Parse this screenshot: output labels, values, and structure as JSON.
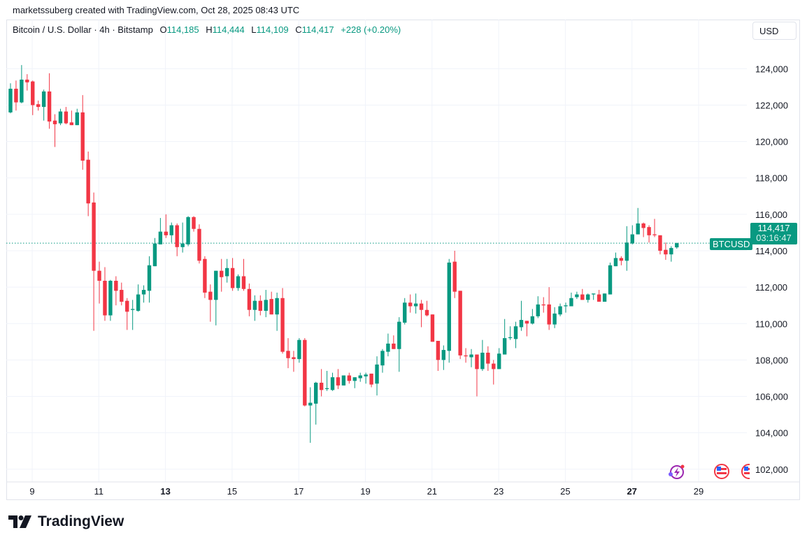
{
  "credit": "marketssuberg created with TradingView.com, Oct 28, 2025 08:43 UTC",
  "legend": {
    "symbol": "Bitcoin / U.S. Dollar · 4h · Bitstamp",
    "o_label": "O",
    "o": "114,185",
    "h_label": "H",
    "h": "114,444",
    "l_label": "L",
    "l": "114,109",
    "c_label": "C",
    "c": "114,417",
    "change": "+228 (+0.20%)"
  },
  "currency_button": "USD",
  "price_tag": {
    "symbol": "BTCUSD",
    "price": "114,417",
    "countdown": "03:16:47"
  },
  "logo_text": "TradingView",
  "colors": {
    "up": "#089981",
    "down": "#f23645",
    "grid": "#f0f3fa",
    "text": "#131722"
  },
  "icons": [
    "lightning-event-icon",
    "us-flag-event-icon",
    "us-flag-event-icon"
  ],
  "chart_data": {
    "type": "candlestick",
    "title": "Bitcoin / U.S. Dollar · 4h · Bitstamp",
    "interval": "4h",
    "ylim": [
      101300,
      126700
    ],
    "grid": true,
    "last_price": 114417,
    "y_ticks": [
      {
        "value": 124000,
        "label": "124,000"
      },
      {
        "value": 122000,
        "label": "122,000"
      },
      {
        "value": 120000,
        "label": "120,000"
      },
      {
        "value": 118000,
        "label": "118,000"
      },
      {
        "value": 116000,
        "label": "116,000"
      },
      {
        "value": 114000,
        "label": "114,000"
      },
      {
        "value": 112000,
        "label": "112,000"
      },
      {
        "value": 110000,
        "label": "110,000"
      },
      {
        "value": 108000,
        "label": "108,000"
      },
      {
        "value": 106000,
        "label": "106,000"
      },
      {
        "value": 104000,
        "label": "104,000"
      },
      {
        "value": 102000,
        "label": "102,000"
      }
    ],
    "x_ticks": [
      {
        "day": 9,
        "label": "9",
        "bold": false
      },
      {
        "day": 11,
        "label": "11",
        "bold": false
      },
      {
        "day": 13,
        "label": "13",
        "bold": true
      },
      {
        "day": 15,
        "label": "15",
        "bold": false
      },
      {
        "day": 17,
        "label": "17",
        "bold": false
      },
      {
        "day": 19,
        "label": "19",
        "bold": false
      },
      {
        "day": 21,
        "label": "21",
        "bold": false
      },
      {
        "day": 23,
        "label": "23",
        "bold": false
      },
      {
        "day": 25,
        "label": "25",
        "bold": false
      },
      {
        "day": 27,
        "label": "27",
        "bold": true
      },
      {
        "day": 29,
        "label": "29",
        "bold": false
      }
    ],
    "ohlc_fields": [
      "open",
      "high",
      "low",
      "close"
    ],
    "candles": [
      [
        121600,
        123200,
        121550,
        122900
      ],
      [
        122900,
        123350,
        121700,
        122150
      ],
      [
        122150,
        124200,
        122100,
        123400
      ],
      [
        123400,
        123700,
        122800,
        123250
      ],
      [
        123300,
        123350,
        121450,
        122000
      ],
      [
        122050,
        122250,
        121700,
        121900
      ],
      [
        121900,
        122850,
        121150,
        122750
      ],
      [
        122750,
        123750,
        120700,
        121100
      ],
      [
        121150,
        121500,
        119700,
        120950
      ],
      [
        121000,
        121800,
        120900,
        121650
      ],
      [
        121650,
        121900,
        120950,
        121000
      ],
      [
        121050,
        121700,
        120900,
        120900
      ],
      [
        120900,
        121800,
        120900,
        121600
      ],
      [
        121600,
        122550,
        118450,
        118950
      ],
      [
        119000,
        119450,
        115900,
        116600
      ],
      [
        116650,
        117200,
        109600,
        112900
      ],
      [
        112900,
        113400,
        111100,
        112350
      ],
      [
        112350,
        113100,
        110150,
        110450
      ],
      [
        110450,
        112400,
        110150,
        112350
      ],
      [
        112350,
        112600,
        111000,
        111800
      ],
      [
        111850,
        112250,
        111000,
        111200
      ],
      [
        111250,
        111400,
        109650,
        110650
      ],
      [
        110750,
        111300,
        109650,
        110800
      ],
      [
        110700,
        112150,
        110650,
        111600
      ],
      [
        111600,
        112100,
        111150,
        111850
      ],
      [
        111800,
        113700,
        111150,
        113200
      ],
      [
        113150,
        114700,
        113150,
        114400
      ],
      [
        114350,
        115800,
        114350,
        115050
      ],
      [
        115050,
        116000,
        114700,
        114850
      ],
      [
        114850,
        115550,
        114450,
        115400
      ],
      [
        115400,
        115500,
        113700,
        114200
      ],
      [
        114200,
        115550,
        113900,
        114400
      ],
      [
        114350,
        115900,
        114250,
        115850
      ],
      [
        115850,
        115900,
        115050,
        115200
      ],
      [
        115200,
        115450,
        113300,
        113450
      ],
      [
        113550,
        113700,
        111400,
        111700
      ],
      [
        111750,
        112150,
        110100,
        111300
      ],
      [
        111300,
        112900,
        109900,
        112900
      ],
      [
        112900,
        113550,
        111750,
        112550
      ],
      [
        112600,
        113550,
        112250,
        113050
      ],
      [
        113050,
        113600,
        111800,
        111950
      ],
      [
        111950,
        112700,
        111800,
        112600
      ],
      [
        112600,
        113550,
        111800,
        111900
      ],
      [
        111900,
        112200,
        110400,
        110750
      ],
      [
        110750,
        111550,
        110150,
        111250
      ],
      [
        111250,
        111550,
        110450,
        110700
      ],
      [
        110700,
        111850,
        110350,
        111300
      ],
      [
        111350,
        111750,
        110500,
        110500
      ],
      [
        110500,
        111700,
        109600,
        111400
      ],
      [
        111400,
        111950,
        108350,
        108450
      ],
      [
        108500,
        109200,
        107550,
        108100
      ],
      [
        108150,
        108500,
        107350,
        108050
      ],
      [
        108050,
        109200,
        107850,
        109100
      ],
      [
        109100,
        109200,
        105450,
        105500
      ],
      [
        105500,
        106500,
        103450,
        105650
      ],
      [
        105600,
        106800,
        104450,
        106750
      ],
      [
        106750,
        107500,
        106000,
        106350
      ],
      [
        106400,
        107400,
        106300,
        106450
      ],
      [
        106350,
        107300,
        106300,
        107050
      ],
      [
        107050,
        107500,
        106400,
        106600
      ],
      [
        106600,
        107150,
        106600,
        107150
      ],
      [
        107150,
        107300,
        106700,
        106850
      ],
      [
        106850,
        107050,
        106450,
        107050
      ],
      [
        107000,
        107300,
        106800,
        107150
      ],
      [
        107100,
        107300,
        106700,
        107200
      ],
      [
        107250,
        107250,
        106500,
        106650
      ],
      [
        106700,
        108200,
        106050,
        107750
      ],
      [
        107700,
        108600,
        107300,
        108500
      ],
      [
        108450,
        109450,
        108200,
        108900
      ],
      [
        108900,
        109350,
        108600,
        108600
      ],
      [
        108600,
        110350,
        107350,
        110100
      ],
      [
        110050,
        111400,
        109950,
        111150
      ],
      [
        111150,
        111600,
        110600,
        110950
      ],
      [
        110950,
        111650,
        110550,
        111100
      ],
      [
        111100,
        111300,
        109800,
        110750
      ],
      [
        110750,
        111250,
        110400,
        110450
      ],
      [
        110500,
        110500,
        109000,
        109000
      ],
      [
        109050,
        109050,
        107400,
        108000
      ],
      [
        108000,
        108800,
        107450,
        108550
      ],
      [
        108500,
        113550,
        107850,
        113350
      ],
      [
        113400,
        114000,
        111400,
        111750
      ],
      [
        111800,
        111800,
        108050,
        108250
      ],
      [
        108250,
        108650,
        107850,
        108200
      ],
      [
        108150,
        108600,
        107600,
        108300
      ],
      [
        108300,
        108300,
        106000,
        107500
      ],
      [
        107500,
        109100,
        107400,
        108400
      ],
      [
        108400,
        108750,
        107400,
        107800
      ],
      [
        107800,
        108000,
        106650,
        107500
      ],
      [
        107500,
        108650,
        107500,
        108350
      ],
      [
        108300,
        110250,
        108300,
        109200
      ],
      [
        109200,
        109850,
        109100,
        109250
      ],
      [
        109150,
        110100,
        108650,
        109850
      ],
      [
        109800,
        111250,
        109600,
        110200
      ],
      [
        110150,
        110150,
        109300,
        110000
      ],
      [
        110000,
        110800,
        109950,
        110400
      ],
      [
        110400,
        111500,
        110300,
        111050
      ],
      [
        111050,
        111450,
        110600,
        111000
      ],
      [
        111050,
        112000,
        109650,
        109950
      ],
      [
        109950,
        110900,
        109750,
        110550
      ],
      [
        110500,
        111100,
        110400,
        110950
      ],
      [
        110950,
        111150,
        110600,
        111000
      ],
      [
        110950,
        111700,
        110950,
        111400
      ],
      [
        111450,
        111750,
        111350,
        111600
      ],
      [
        111600,
        111900,
        111300,
        111300
      ],
      [
        111300,
        111650,
        111150,
        111600
      ],
      [
        111600,
        111650,
        111300,
        111650
      ],
      [
        111600,
        111850,
        111200,
        111200
      ],
      [
        111200,
        111650,
        111200,
        111650
      ],
      [
        111600,
        113350,
        111600,
        113200
      ],
      [
        113150,
        113900,
        113150,
        113600
      ],
      [
        113600,
        113700,
        113200,
        113450
      ],
      [
        113450,
        115350,
        112900,
        114450
      ],
      [
        114400,
        115400,
        114350,
        114900
      ],
      [
        114900,
        116350,
        114900,
        115500
      ],
      [
        115500,
        115550,
        114750,
        115250
      ],
      [
        115300,
        115400,
        114450,
        114850
      ],
      [
        114900,
        115750,
        114750,
        114850
      ],
      [
        114850,
        114850,
        113800,
        114000
      ],
      [
        114050,
        114450,
        113500,
        113800
      ],
      [
        113800,
        114250,
        113400,
        114150
      ],
      [
        114185,
        114444,
        114109,
        114417
      ]
    ]
  }
}
